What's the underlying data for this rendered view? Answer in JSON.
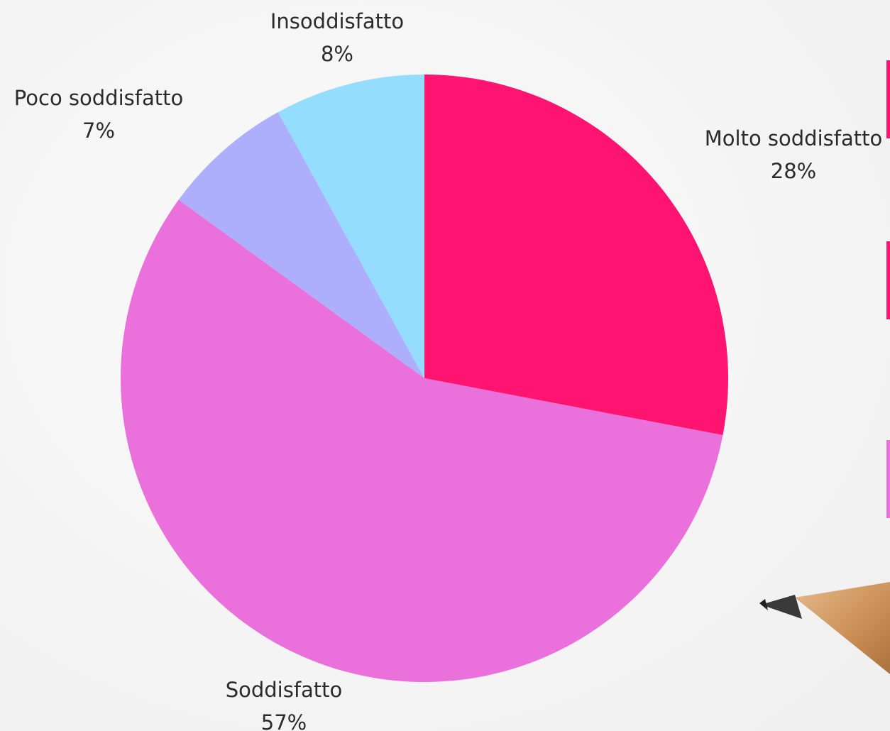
{
  "chart_data": {
    "type": "pie",
    "title": "",
    "slices": [
      {
        "label": "Molto soddisfatto",
        "value": 28,
        "value_label": "28%",
        "color": "#ff1472"
      },
      {
        "label": "Soddisfatto",
        "value": 57,
        "value_label": "57%",
        "color": "#ea70dc"
      },
      {
        "label": "Poco soddisfatto",
        "value": 7,
        "value_label": "7%",
        "color": "#adaffd"
      },
      {
        "label": "Insoddisfatto",
        "value": 8,
        "value_label": "8%",
        "color": "#95ddff"
      }
    ],
    "start_angle": "12 o'clock",
    "direction": "clockwise",
    "legend": "none"
  },
  "background": {
    "color": "#f6f6f6",
    "decoration": "pencil-tip-icon"
  }
}
